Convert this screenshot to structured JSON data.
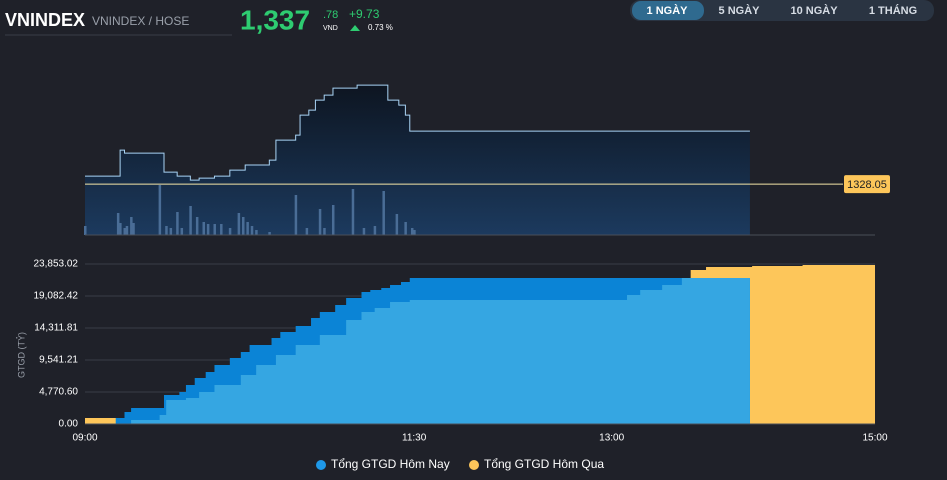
{
  "header": {
    "symbol": "VNINDEX",
    "exchange": "VNINDEX / HOSE",
    "price_int": "1,337",
    "price_dec": ".78",
    "currency": "VND",
    "change": "+9.73",
    "change_pct": "0.73 %"
  },
  "buttons": [
    "1 NGÀY",
    "5 NGÀY",
    "10 NGÀY",
    "1 THÁNG"
  ],
  "chart_data": [
    {
      "type": "line",
      "xlim": [
        540,
        900
      ],
      "ylim": [
        1318.7,
        1354.5
      ],
      "reference": 1328.05,
      "color": "#a9d4f5",
      "x": [
        540,
        554,
        556,
        558,
        574,
        576,
        582,
        588,
        592,
        599,
        606,
        613,
        624,
        627,
        636,
        638,
        642,
        645,
        649,
        653,
        664,
        676,
        678,
        683,
        686,
        688,
        843
      ],
      "values": [
        1329.52,
        1329.52,
        1334.29,
        1333.74,
        1333.74,
        1330.25,
        1329.52,
        1328.78,
        1329.15,
        1329.52,
        1330.62,
        1331.54,
        1332.45,
        1336.12,
        1337.04,
        1340.71,
        1341.63,
        1343.46,
        1344.38,
        1345.66,
        1346.22,
        1346.22,
        1343.46,
        1342.55,
        1340.71,
        1337.78,
        1337.78
      ],
      "volume": {
        "color": "#4a6d96",
        "vlim": [
          0,
          100
        ],
        "x": [
          540,
          555,
          556,
          558,
          559,
          561,
          562,
          574,
          577,
          579,
          582,
          584,
          588,
          591,
          594,
          596,
          599,
          602,
          606,
          610,
          612,
          614,
          616,
          618,
          624,
          636,
          641,
          647,
          649,
          653,
          662,
          667,
          672,
          676,
          682,
          686,
          689,
          690
        ],
        "values": [
          18,
          44,
          24,
          14,
          18,
          36,
          24,
          100,
          18,
          14,
          46,
          14,
          58,
          36,
          26,
          22,
          22,
          22,
          14,
          44,
          36,
          26,
          18,
          10,
          6,
          80,
          14,
          52,
          14,
          60,
          92,
          14,
          18,
          88,
          42,
          26,
          14,
          10
        ]
      }
    },
    {
      "type": "step-area",
      "xlim": [
        540,
        900
      ],
      "ylim": [
        0,
        23853.02
      ],
      "ylabel": "GTGD (TỶ)",
      "xticks": [
        {
          "value": 540,
          "label": "09:00"
        },
        {
          "value": 690,
          "label": "11:30"
        },
        {
          "value": 780,
          "label": "13:00"
        },
        {
          "value": 900,
          "label": "15:00"
        }
      ],
      "yticks": [
        {
          "value": 0,
          "label": "0.00"
        },
        {
          "value": 4770.6,
          "label": "4,770.60"
        },
        {
          "value": 9541.21,
          "label": "9,541.21"
        },
        {
          "value": 14311.81,
          "label": "14,311.81"
        },
        {
          "value": 19082.42,
          "label": "19,082.42"
        },
        {
          "value": 23853.02,
          "label": "23,853.02"
        }
      ],
      "series": [
        {
          "name": "Tổng GTGD Hôm Qua",
          "color": "#fdc65a",
          "x": [
            540,
            561,
            574,
            577,
            586,
            592,
            599,
            611,
            618,
            627,
            636,
            647,
            659,
            666,
            672,
            679,
            688,
            775,
            787,
            793,
            803,
            812,
            816,
            823,
            844,
            867,
            900
          ],
          "values": [
            894,
            894,
            1342,
            3578,
            3876,
            4771,
            5814,
            7305,
            8796,
            10287,
            11777,
            13268,
            15504,
            16697,
            17293,
            18188,
            18486,
            18486,
            19231,
            19977,
            20722,
            21766,
            22958,
            23406,
            23555,
            23704,
            23853.02
          ]
        },
        {
          "name": "Tổng GTGD Hôm Nay",
          "color": "#0b84d6",
          "x": [
            540,
            554,
            558,
            561,
            574,
            576,
            583,
            586,
            590,
            595,
            599,
            606,
            611,
            615,
            625,
            629,
            636,
            643,
            647,
            654,
            659,
            666,
            670,
            675,
            679,
            684,
            688,
            843
          ],
          "values": [
            0,
            894,
            1789,
            2385,
            2385,
            4323,
            4771,
            5814,
            6858,
            7752,
            8796,
            9839,
            10734,
            11777,
            12821,
            13715,
            14610,
            15802,
            16697,
            17741,
            18784,
            19679,
            19977,
            20275,
            20722,
            21169,
            21766,
            21766
          ]
        },
        {
          "color": "#35a6e2",
          "x": [
            540,
            561,
            574,
            577,
            586,
            592,
            599,
            611,
            618,
            627,
            636,
            647,
            659,
            666,
            672,
            679,
            688,
            775,
            787,
            793,
            803,
            812,
            843
          ],
          "values": [
            0,
            596,
            1342,
            3578,
            3876,
            4771,
            5814,
            7305,
            8796,
            10287,
            11777,
            13268,
            15504,
            16697,
            17293,
            18188,
            18486,
            18486,
            19231,
            19977,
            20722,
            21766,
            21766
          ]
        }
      ]
    }
  ]
}
